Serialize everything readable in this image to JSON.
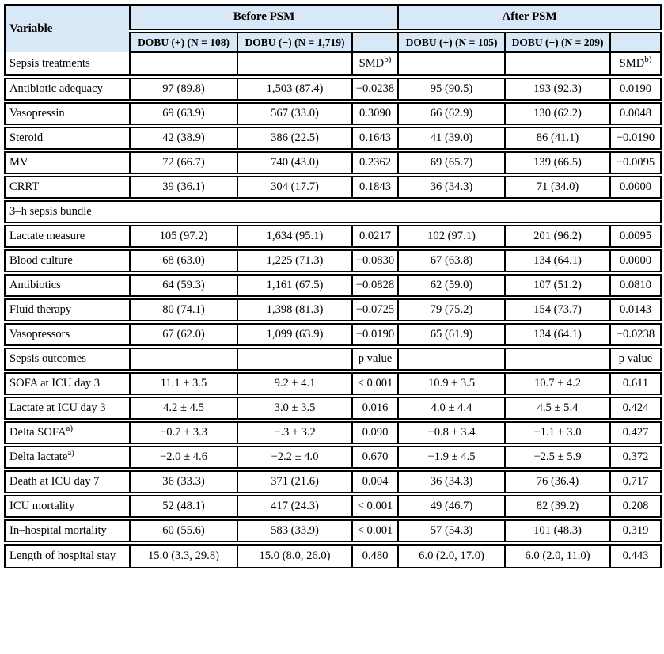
{
  "colors": {
    "header_bg": "#d9e8f7",
    "border": "#000000",
    "body_bg": "#ffffff"
  },
  "header": {
    "variable": "Variable",
    "before": "Before PSM",
    "after": "After PSM",
    "subcols": [
      "DOBU (+) (N = 108)",
      "DOBU (−) (N = 1,719)",
      "",
      "DOBU (+) (N = 105)",
      "DOBU (−) (N = 209)",
      ""
    ]
  },
  "rows": [
    {
      "type": "section",
      "label": "Sepsis treatments",
      "stat_label": "SMD",
      "stat_sup": "b)"
    },
    {
      "type": "data",
      "label": "Antibiotic adequacy",
      "cells": [
        "97 (89.8)",
        "1,503 (87.4)",
        "−0.0238",
        "95 (90.5)",
        "193 (92.3)",
        "0.0190"
      ]
    },
    {
      "type": "data",
      "label": "Vasopressin",
      "cells": [
        "69 (63.9)",
        "567 (33.0)",
        "0.3090",
        "66 (62.9)",
        "130 (62.2)",
        "0.0048"
      ]
    },
    {
      "type": "data",
      "label": "Steroid",
      "cells": [
        "42 (38.9)",
        "386 (22.5)",
        "0.1643",
        "41 (39.0)",
        "86 (41.1)",
        "−0.0190"
      ]
    },
    {
      "type": "data",
      "label": "MV",
      "cells": [
        "72 (66.7)",
        "740 (43.0)",
        "0.2362",
        "69 (65.7)",
        "139 (66.5)",
        "−0.0095"
      ]
    },
    {
      "type": "data",
      "label": "CRRT",
      "cells": [
        "39 (36.1)",
        "304 (17.7)",
        "0.1843",
        "36 (34.3)",
        "71 (34.0)",
        "0.0000"
      ]
    },
    {
      "type": "full",
      "label": "3–h sepsis bundle"
    },
    {
      "type": "data",
      "label": "Lactate measure",
      "cells": [
        "105 (97.2)",
        "1,634 (95.1)",
        "0.0217",
        "102 (97.1)",
        "201 (96.2)",
        "0.0095"
      ]
    },
    {
      "type": "data",
      "label": "Blood culture",
      "cells": [
        "68 (63.0)",
        "1,225 (71.3)",
        "−0.0830",
        "67 (63.8)",
        "134 (64.1)",
        "0.0000"
      ]
    },
    {
      "type": "data",
      "label": "Antibiotics",
      "cells": [
        "64 (59.3)",
        "1,161 (67.5)",
        "−0.0828",
        "62 (59.0)",
        "107 (51.2)",
        "0.0810"
      ]
    },
    {
      "type": "data",
      "label": "Fluid therapy",
      "cells": [
        "80 (74.1)",
        "1,398 (81.3)",
        "−0.0725",
        "79 (75.2)",
        "154 (73.7)",
        "0.0143"
      ]
    },
    {
      "type": "data",
      "label": "Vasopressors",
      "cells": [
        "67 (62.0)",
        "1,099 (63.9)",
        "−0.0190",
        "65 (61.9)",
        "134 (64.1)",
        "−0.0238"
      ]
    },
    {
      "type": "section",
      "label": "Sepsis outcomes",
      "stat_label": "p value",
      "stat_sup": ""
    },
    {
      "type": "data",
      "label": "SOFA at ICU day 3",
      "cells": [
        "11.1 ± 3.5",
        "9.2 ± 4.1",
        "< 0.001",
        "10.9 ± 3.5",
        "10.7 ± 4.2",
        "0.611"
      ]
    },
    {
      "type": "data",
      "label": "Lactate at ICU day 3",
      "cells": [
        "4.2 ± 4.5",
        "3.0 ± 3.5",
        "0.016",
        "4.0 ± 4.4",
        "4.5 ± 5.4",
        "0.424"
      ]
    },
    {
      "type": "data",
      "label": "Delta SOFA",
      "label_sup": "a)",
      "cells": [
        "−0.7 ± 3.3",
        "−.3 ± 3.2",
        "0.090",
        "−0.8 ± 3.4",
        "−1.1 ± 3.0",
        "0.427"
      ]
    },
    {
      "type": "data",
      "label": "Delta lactate",
      "label_sup": "a)",
      "cells": [
        "−2.0 ± 4.6",
        "−2.2 ± 4.0",
        "0.670",
        "−1.9 ± 4.5",
        "−2.5 ± 5.9",
        "0.372"
      ]
    },
    {
      "type": "data",
      "label": "Death at ICU day 7",
      "cells": [
        "36 (33.3)",
        "371 (21.6)",
        "0.004",
        "36 (34.3)",
        "76 (36.4)",
        "0.717"
      ]
    },
    {
      "type": "data",
      "label": "ICU mortality",
      "cells": [
        "52 (48.1)",
        "417 (24.3)",
        "< 0.001",
        "49 (46.7)",
        "82 (39.2)",
        "0.208"
      ]
    },
    {
      "type": "data",
      "label": "In–hospital mortality",
      "cells": [
        "60 (55.6)",
        "583 (33.9)",
        "< 0.001",
        "57 (54.3)",
        "101 (48.3)",
        "0.319"
      ]
    },
    {
      "type": "data",
      "label": "Length of hospital stay",
      "cells": [
        "15.0 (3.3, 29.8)",
        "15.0 (8.0, 26.0)",
        "0.480",
        "6.0 (2.0, 17.0)",
        "6.0 (2.0, 11.0)",
        "0.443"
      ]
    }
  ]
}
